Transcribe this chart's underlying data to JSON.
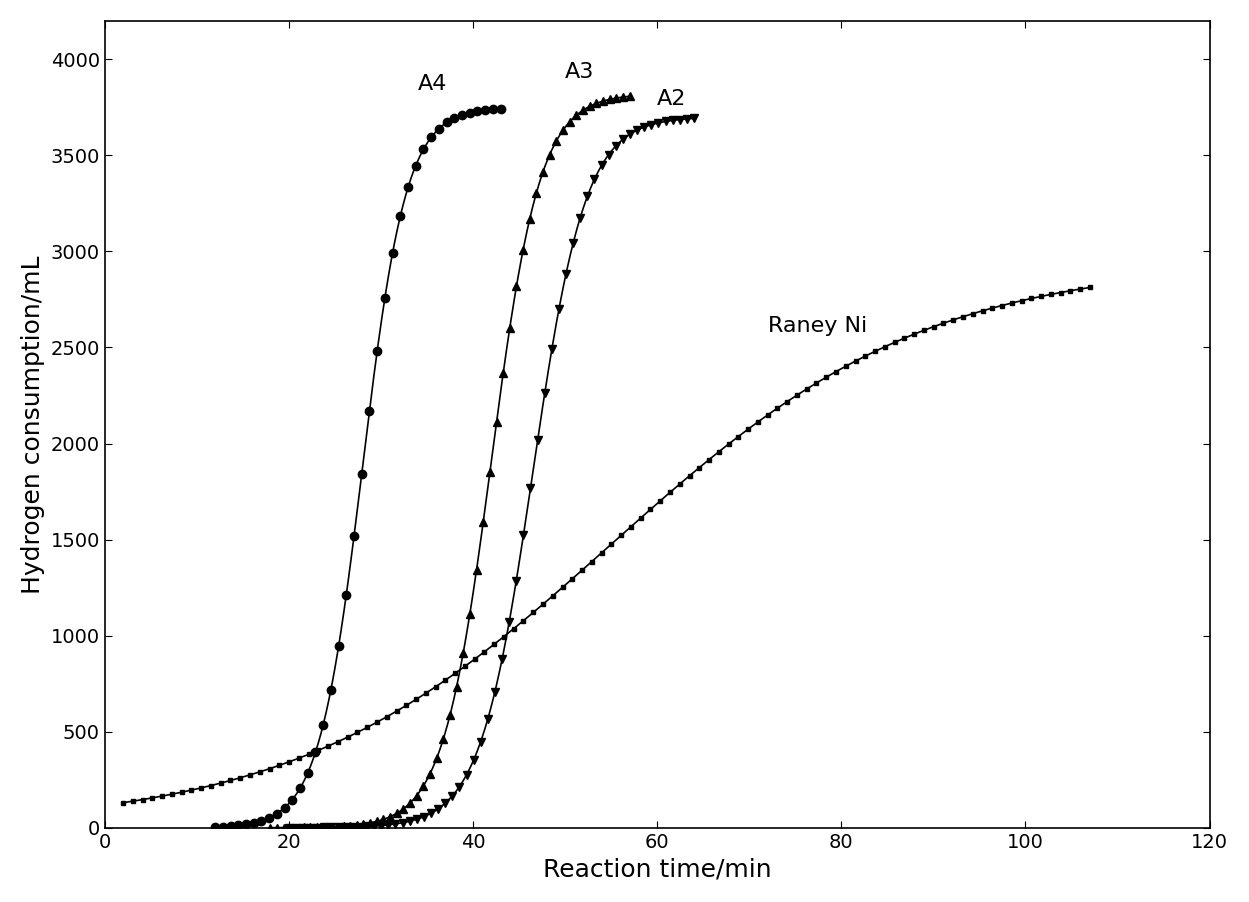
{
  "title": "",
  "xlabel": "Reaction time/min",
  "ylabel": "Hydrogen consumption/mL",
  "xlim": [
    0,
    120
  ],
  "ylim": [
    0,
    4200
  ],
  "xticks": [
    0,
    20,
    40,
    60,
    80,
    100,
    120
  ],
  "yticks": [
    0,
    500,
    1000,
    1500,
    2000,
    2500,
    3000,
    3500,
    4000
  ],
  "background_color": "#ffffff",
  "series": [
    {
      "label": "A4",
      "color": "#000000",
      "marker": "o",
      "markersize": 6,
      "n_markers": 38,
      "sigmoid_x0": 28.0,
      "sigmoid_k": 0.42,
      "y_max": 3750,
      "x_start": 12,
      "x_end": 43,
      "annotation": "A4",
      "ann_x": 34,
      "ann_y": 3840
    },
    {
      "label": "A3",
      "color": "#000000",
      "marker": "^",
      "markersize": 6,
      "n_markers": 55,
      "sigmoid_x0": 42.0,
      "sigmoid_k": 0.38,
      "y_max": 3820,
      "x_start": 18,
      "x_end": 57,
      "annotation": "A3",
      "ann_x": 50,
      "ann_y": 3900
    },
    {
      "label": "A2",
      "color": "#000000",
      "marker": "v",
      "markersize": 6,
      "n_markers": 58,
      "sigmoid_x0": 46.5,
      "sigmoid_k": 0.35,
      "y_max": 3700,
      "x_start": 20,
      "x_end": 64,
      "annotation": "A2",
      "ann_x": 60,
      "ann_y": 3760
    },
    {
      "label": "Raney Ni",
      "color": "#000000",
      "marker": "s",
      "markersize": 3,
      "n_markers": 100,
      "sigmoid_x0": 55.0,
      "sigmoid_k": 0.058,
      "y_max": 2950,
      "x_start": 2,
      "x_end": 107,
      "annotation": "Raney Ni",
      "ann_x": 72,
      "ann_y": 2580
    }
  ],
  "xlabel_fontsize": 18,
  "ylabel_fontsize": 18,
  "tick_fontsize": 14,
  "annotation_fontsize": 16,
  "linewidth": 1.2
}
